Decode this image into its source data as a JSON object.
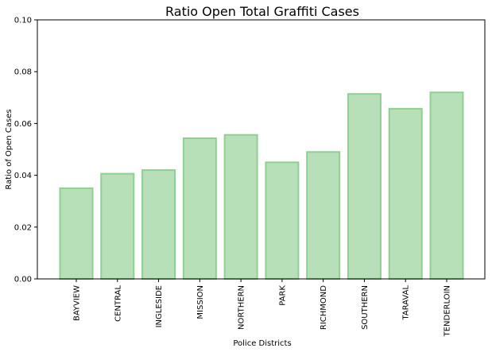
{
  "chart_data": {
    "type": "bar",
    "title": "Ratio Open Total Graffiti Cases",
    "xlabel": "Police Districts",
    "ylabel": "Ratio of Open Cases",
    "categories": [
      "BAYVIEW",
      "CENTRAL",
      "INGLESIDE",
      "MISSION",
      "NORTHERN",
      "PARK",
      "RICHMOND",
      "SOUTHERN",
      "TARAVAL",
      "TENDERLOIN"
    ],
    "values": [
      0.035,
      0.0406,
      0.042,
      0.0543,
      0.0556,
      0.045,
      0.049,
      0.0714,
      0.0657,
      0.072
    ],
    "ylim": [
      0,
      0.1
    ],
    "yticks": [
      "0.00",
      "0.02",
      "0.04",
      "0.06",
      "0.08",
      "0.10"
    ],
    "grid": false,
    "colors": {
      "fill": "#b7e0b9",
      "stroke": "#8fcf92"
    }
  }
}
